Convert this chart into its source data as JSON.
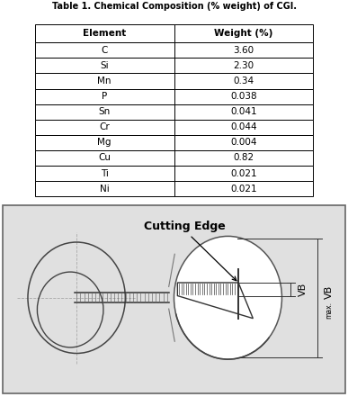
{
  "title": "Table 1. Chemical Composition (% weight) of CGI.",
  "col_labels": [
    "Element",
    "Weight (%)"
  ],
  "rows": [
    [
      "C",
      "3.60"
    ],
    [
      "Si",
      "2.30"
    ],
    [
      "Mn",
      "0.34"
    ],
    [
      "P",
      "0.038"
    ],
    [
      "Sn",
      "0.041"
    ],
    [
      "Cr",
      "0.044"
    ],
    [
      "Mg",
      "0.004"
    ],
    [
      "Cu",
      "0.82"
    ],
    [
      "Ti",
      "0.021"
    ],
    [
      "Ni",
      "0.021"
    ]
  ],
  "bg_color": "#ffffff",
  "diagram_bg": "#e0e0e0",
  "diagram_border": "#666666",
  "cutting_edge_label": "Cutting Edge",
  "vb_label": "VB",
  "vb_max_label": "VB",
  "vb_max_sub": "max."
}
